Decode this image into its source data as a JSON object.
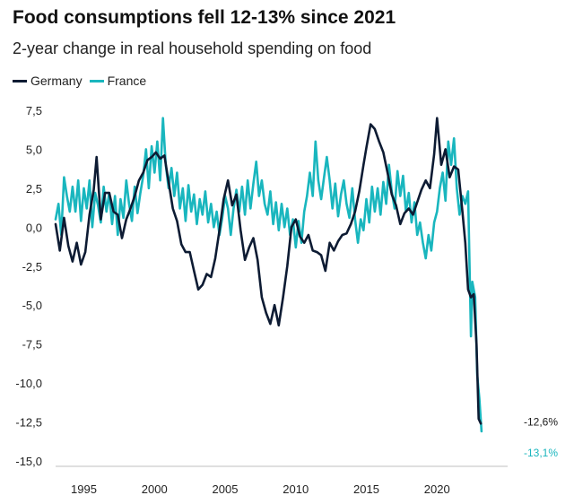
{
  "chart_data": {
    "type": "line",
    "title": "Food consumptions fell 12-13% since 2021",
    "subtitle": "2-year change in real household spending on food",
    "x_ticks": [
      "1995",
      "2000",
      "2005",
      "2010",
      "2015",
      "2020"
    ],
    "y_ticks": [
      "7,5",
      "5,0",
      "2,5",
      "0,0",
      "-2,5",
      "-5,0",
      "-7,5",
      "-10,0",
      "-12,5",
      "-15,0"
    ],
    "xlim": [
      1993.0,
      2025.0
    ],
    "ylim": [
      -15.0,
      7.5
    ],
    "grid": false,
    "legend_position": "top-left",
    "series": [
      {
        "name": "Germany",
        "color": "#0d1b33",
        "end_label": "-12,6%",
        "points": [
          [
            1993.0,
            0.2
          ],
          [
            1993.3,
            -1.5
          ],
          [
            1993.6,
            0.6
          ],
          [
            1993.9,
            -1.2
          ],
          [
            1994.2,
            -2.2
          ],
          [
            1994.5,
            -1.0
          ],
          [
            1994.8,
            -2.4
          ],
          [
            1995.1,
            -1.6
          ],
          [
            1995.4,
            0.8
          ],
          [
            1995.7,
            2.4
          ],
          [
            1995.9,
            4.5
          ],
          [
            1996.2,
            0.5
          ],
          [
            1996.5,
            2.2
          ],
          [
            1996.8,
            2.2
          ],
          [
            1997.1,
            1.0
          ],
          [
            1997.4,
            0.8
          ],
          [
            1997.7,
            -0.7
          ],
          [
            1998.0,
            0.5
          ],
          [
            1998.3,
            1.2
          ],
          [
            1998.6,
            2.0
          ],
          [
            1998.9,
            3.0
          ],
          [
            1999.2,
            3.5
          ],
          [
            1999.5,
            4.3
          ],
          [
            1999.8,
            4.5
          ],
          [
            2000.1,
            4.8
          ],
          [
            2000.4,
            4.4
          ],
          [
            2000.7,
            4.6
          ],
          [
            2001.0,
            2.9
          ],
          [
            2001.3,
            1.2
          ],
          [
            2001.6,
            0.4
          ],
          [
            2001.9,
            -1.1
          ],
          [
            2002.2,
            -1.6
          ],
          [
            2002.5,
            -1.6
          ],
          [
            2002.8,
            -2.8
          ],
          [
            2003.1,
            -4.0
          ],
          [
            2003.4,
            -3.7
          ],
          [
            2003.7,
            -3.0
          ],
          [
            2004.0,
            -3.2
          ],
          [
            2004.3,
            -2.0
          ],
          [
            2004.6,
            -0.2
          ],
          [
            2004.9,
            1.8
          ],
          [
            2005.2,
            3.0
          ],
          [
            2005.5,
            1.4
          ],
          [
            2005.8,
            2.1
          ],
          [
            2006.1,
            -0.2
          ],
          [
            2006.4,
            -2.1
          ],
          [
            2006.7,
            -1.3
          ],
          [
            2007.0,
            -0.7
          ],
          [
            2007.3,
            -2.1
          ],
          [
            2007.6,
            -4.5
          ],
          [
            2007.9,
            -5.5
          ],
          [
            2008.2,
            -6.2
          ],
          [
            2008.5,
            -5.0
          ],
          [
            2008.8,
            -6.3
          ],
          [
            2009.1,
            -4.5
          ],
          [
            2009.4,
            -2.5
          ],
          [
            2009.7,
            0.0
          ],
          [
            2010.0,
            0.5
          ],
          [
            2010.3,
            -0.6
          ],
          [
            2010.6,
            -1.0
          ],
          [
            2010.9,
            -0.5
          ],
          [
            2011.2,
            -1.5
          ],
          [
            2011.5,
            -1.6
          ],
          [
            2011.8,
            -1.8
          ],
          [
            2012.1,
            -2.8
          ],
          [
            2012.4,
            -1.0
          ],
          [
            2012.7,
            -1.5
          ],
          [
            2013.0,
            -0.9
          ],
          [
            2013.3,
            -0.5
          ],
          [
            2013.6,
            -0.4
          ],
          [
            2013.9,
            0.2
          ],
          [
            2014.2,
            1.0
          ],
          [
            2014.5,
            2.3
          ],
          [
            2014.8,
            4.0
          ],
          [
            2015.0,
            5.1
          ],
          [
            2015.3,
            6.6
          ],
          [
            2015.6,
            6.3
          ],
          [
            2015.9,
            5.5
          ],
          [
            2016.2,
            4.8
          ],
          [
            2016.5,
            3.5
          ],
          [
            2016.8,
            2.1
          ],
          [
            2017.1,
            1.4
          ],
          [
            2017.4,
            0.2
          ],
          [
            2017.7,
            0.9
          ],
          [
            2018.0,
            1.2
          ],
          [
            2018.3,
            0.8
          ],
          [
            2018.6,
            1.6
          ],
          [
            2018.9,
            2.4
          ],
          [
            2019.2,
            3.0
          ],
          [
            2019.5,
            2.5
          ],
          [
            2019.8,
            4.7
          ],
          [
            2020.0,
            7.0
          ],
          [
            2020.3,
            4.0
          ],
          [
            2020.6,
            5.0
          ],
          [
            2020.9,
            3.2
          ],
          [
            2021.2,
            3.9
          ],
          [
            2021.5,
            3.7
          ],
          [
            2021.8,
            1.0
          ],
          [
            2022.0,
            -1.0
          ],
          [
            2022.2,
            -4.0
          ],
          [
            2022.4,
            -4.5
          ],
          [
            2022.6,
            -4.3
          ],
          [
            2022.8,
            -7.5
          ],
          [
            2022.95,
            -12.3
          ],
          [
            2023.1,
            -12.6
          ]
        ]
      },
      {
        "name": "France",
        "color": "#19b6be",
        "end_label": "-13,1%",
        "points": [
          [
            1993.0,
            0.5
          ],
          [
            1993.2,
            1.5
          ],
          [
            1993.4,
            -0.5
          ],
          [
            1993.6,
            3.2
          ],
          [
            1993.8,
            2.0
          ],
          [
            1994.0,
            1.0
          ],
          [
            1994.2,
            2.6
          ],
          [
            1994.4,
            1.0
          ],
          [
            1994.6,
            3.0
          ],
          [
            1994.8,
            0.4
          ],
          [
            1995.0,
            2.5
          ],
          [
            1995.2,
            1.2
          ],
          [
            1995.4,
            3.0
          ],
          [
            1995.6,
            0.0
          ],
          [
            1995.8,
            2.2
          ],
          [
            1996.0,
            1.4
          ],
          [
            1996.2,
            0.3
          ],
          [
            1996.4,
            2.6
          ],
          [
            1996.6,
            1.0
          ],
          [
            1996.8,
            2.2
          ],
          [
            1997.0,
            0.2
          ],
          [
            1997.2,
            2.0
          ],
          [
            1997.4,
            -0.5
          ],
          [
            1997.6,
            1.8
          ],
          [
            1997.8,
            0.6
          ],
          [
            1998.0,
            3.0
          ],
          [
            1998.2,
            1.5
          ],
          [
            1998.4,
            0.4
          ],
          [
            1998.6,
            2.6
          ],
          [
            1998.8,
            0.9
          ],
          [
            1999.0,
            2.2
          ],
          [
            1999.2,
            3.3
          ],
          [
            1999.4,
            5.0
          ],
          [
            1999.6,
            2.5
          ],
          [
            1999.8,
            5.2
          ],
          [
            2000.0,
            3.5
          ],
          [
            2000.2,
            5.5
          ],
          [
            2000.4,
            3.0
          ],
          [
            2000.6,
            7.0
          ],
          [
            2000.8,
            4.0
          ],
          [
            2001.0,
            2.5
          ],
          [
            2001.2,
            3.8
          ],
          [
            2001.4,
            2.0
          ],
          [
            2001.6,
            3.5
          ],
          [
            2001.8,
            1.2
          ],
          [
            2002.0,
            2.5
          ],
          [
            2002.2,
            0.4
          ],
          [
            2002.4,
            2.7
          ],
          [
            2002.6,
            1.0
          ],
          [
            2002.8,
            2.1
          ],
          [
            2003.0,
            0.2
          ],
          [
            2003.2,
            1.8
          ],
          [
            2003.4,
            0.8
          ],
          [
            2003.6,
            2.3
          ],
          [
            2003.8,
            0.3
          ],
          [
            2004.0,
            1.5
          ],
          [
            2004.2,
            0.0
          ],
          [
            2004.4,
            1.0
          ],
          [
            2004.6,
            -0.5
          ],
          [
            2004.8,
            0.6
          ],
          [
            2005.0,
            2.0
          ],
          [
            2005.2,
            1.2
          ],
          [
            2005.4,
            -0.5
          ],
          [
            2005.6,
            1.2
          ],
          [
            2005.8,
            2.4
          ],
          [
            2006.0,
            1.0
          ],
          [
            2006.2,
            2.6
          ],
          [
            2006.4,
            0.8
          ],
          [
            2006.6,
            3.0
          ],
          [
            2006.8,
            1.2
          ],
          [
            2007.0,
            2.8
          ],
          [
            2007.2,
            4.2
          ],
          [
            2007.4,
            2.0
          ],
          [
            2007.6,
            3.0
          ],
          [
            2007.8,
            1.5
          ],
          [
            2008.0,
            0.8
          ],
          [
            2008.2,
            2.3
          ],
          [
            2008.4,
            0.2
          ],
          [
            2008.6,
            1.6
          ],
          [
            2008.8,
            -0.2
          ],
          [
            2009.0,
            1.5
          ],
          [
            2009.2,
            0.0
          ],
          [
            2009.4,
            1.2
          ],
          [
            2009.6,
            -0.5
          ],
          [
            2009.8,
            0.5
          ],
          [
            2010.0,
            -1.3
          ],
          [
            2010.2,
            0.4
          ],
          [
            2010.4,
            -1.0
          ],
          [
            2010.6,
            1.0
          ],
          [
            2010.8,
            2.0
          ],
          [
            2011.0,
            3.5
          ],
          [
            2011.2,
            2.0
          ],
          [
            2011.4,
            5.5
          ],
          [
            2011.6,
            3.0
          ],
          [
            2011.8,
            1.8
          ],
          [
            2012.0,
            3.2
          ],
          [
            2012.2,
            4.5
          ],
          [
            2012.4,
            3.0
          ],
          [
            2012.6,
            1.2
          ],
          [
            2012.8,
            2.8
          ],
          [
            2013.0,
            0.7
          ],
          [
            2013.2,
            2.1
          ],
          [
            2013.4,
            3.0
          ],
          [
            2013.6,
            1.5
          ],
          [
            2013.8,
            0.6
          ],
          [
            2014.0,
            2.5
          ],
          [
            2014.2,
            0.5
          ],
          [
            2014.4,
            -1.0
          ],
          [
            2014.6,
            0.5
          ],
          [
            2014.8,
            -0.2
          ],
          [
            2015.0,
            1.8
          ],
          [
            2015.2,
            0.3
          ],
          [
            2015.4,
            2.6
          ],
          [
            2015.6,
            1.0
          ],
          [
            2015.8,
            2.5
          ],
          [
            2016.0,
            0.8
          ],
          [
            2016.2,
            2.9
          ],
          [
            2016.4,
            1.5
          ],
          [
            2016.6,
            4.0
          ],
          [
            2016.8,
            2.3
          ],
          [
            2017.0,
            1.2
          ],
          [
            2017.2,
            3.6
          ],
          [
            2017.4,
            2.0
          ],
          [
            2017.6,
            3.3
          ],
          [
            2017.8,
            1.0
          ],
          [
            2018.0,
            2.2
          ],
          [
            2018.2,
            0.3
          ],
          [
            2018.4,
            1.6
          ],
          [
            2018.6,
            -0.5
          ],
          [
            2018.8,
            0.3
          ],
          [
            2019.0,
            -1.0
          ],
          [
            2019.2,
            -2.0
          ],
          [
            2019.4,
            -0.5
          ],
          [
            2019.6,
            -1.5
          ],
          [
            2019.8,
            0.3
          ],
          [
            2020.0,
            1.0
          ],
          [
            2020.2,
            2.5
          ],
          [
            2020.4,
            3.5
          ],
          [
            2020.6,
            1.7
          ],
          [
            2020.8,
            5.5
          ],
          [
            2021.0,
            4.0
          ],
          [
            2021.2,
            5.7
          ],
          [
            2021.4,
            2.5
          ],
          [
            2021.6,
            0.8
          ],
          [
            2021.8,
            2.0
          ],
          [
            2022.0,
            1.5
          ],
          [
            2022.2,
            2.3
          ],
          [
            2022.4,
            -7.0
          ],
          [
            2022.5,
            -3.5
          ],
          [
            2022.7,
            -4.5
          ],
          [
            2022.85,
            -9.5
          ],
          [
            2023.0,
            -11.0
          ],
          [
            2023.15,
            -13.1
          ]
        ]
      }
    ]
  }
}
